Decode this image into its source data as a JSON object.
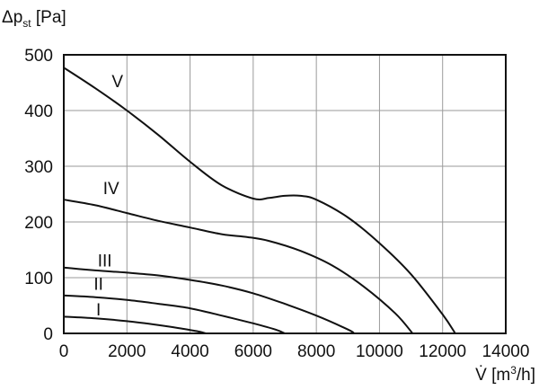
{
  "chart_data": {
    "type": "line",
    "ylabel": {
      "delta": "Δp",
      "sub": "st",
      "unit": " [Pa]"
    },
    "xlabel": {
      "flow": "V̇",
      "unit_open": " [m",
      "sup": "3",
      "unit_close": "/h]"
    },
    "xlim": [
      0,
      14000
    ],
    "ylim": [
      0,
      500
    ],
    "x_ticks": [
      0,
      2000,
      4000,
      6000,
      8000,
      10000,
      12000,
      14000
    ],
    "y_ticks": [
      0,
      100,
      200,
      300,
      400,
      500
    ],
    "grid": true,
    "series": [
      {
        "name": "V",
        "label_at": [
          1700,
          442
        ],
        "points": [
          [
            0,
            477
          ],
          [
            1000,
            440
          ],
          [
            2000,
            400
          ],
          [
            3000,
            356
          ],
          [
            4000,
            308
          ],
          [
            5000,
            266
          ],
          [
            6000,
            242
          ],
          [
            6500,
            243
          ],
          [
            7000,
            247
          ],
          [
            7500,
            247
          ],
          [
            8000,
            240
          ],
          [
            9000,
            208
          ],
          [
            10000,
            162
          ],
          [
            11000,
            106
          ],
          [
            12000,
            34
          ],
          [
            12400,
            0
          ]
        ]
      },
      {
        "name": "IV",
        "label_at": [
          1500,
          250
        ],
        "points": [
          [
            0,
            240
          ],
          [
            1000,
            230
          ],
          [
            2000,
            216
          ],
          [
            3000,
            202
          ],
          [
            4000,
            190
          ],
          [
            5000,
            178
          ],
          [
            5800,
            173
          ],
          [
            6500,
            166
          ],
          [
            7500,
            148
          ],
          [
            8500,
            122
          ],
          [
            9500,
            84
          ],
          [
            10500,
            36
          ],
          [
            11050,
            0
          ]
        ]
      },
      {
        "name": "III",
        "label_at": [
          1300,
          120
        ],
        "points": [
          [
            0,
            118
          ],
          [
            1000,
            113
          ],
          [
            2000,
            109
          ],
          [
            3000,
            104
          ],
          [
            4000,
            96
          ],
          [
            5000,
            86
          ],
          [
            6000,
            72
          ],
          [
            7000,
            53
          ],
          [
            8000,
            32
          ],
          [
            9000,
            7
          ],
          [
            9200,
            0
          ]
        ]
      },
      {
        "name": "II",
        "label_at": [
          1100,
          78
        ],
        "points": [
          [
            0,
            68
          ],
          [
            1000,
            65
          ],
          [
            2000,
            60
          ],
          [
            3000,
            53
          ],
          [
            4000,
            45
          ],
          [
            5000,
            32
          ],
          [
            6000,
            18
          ],
          [
            6700,
            7
          ],
          [
            7000,
            0
          ]
        ]
      },
      {
        "name": "I",
        "label_at": [
          1100,
          32
        ],
        "points": [
          [
            0,
            30
          ],
          [
            1000,
            27
          ],
          [
            2000,
            22
          ],
          [
            3000,
            15
          ],
          [
            3800,
            8
          ],
          [
            4300,
            3
          ],
          [
            4500,
            0
          ]
        ]
      }
    ]
  }
}
